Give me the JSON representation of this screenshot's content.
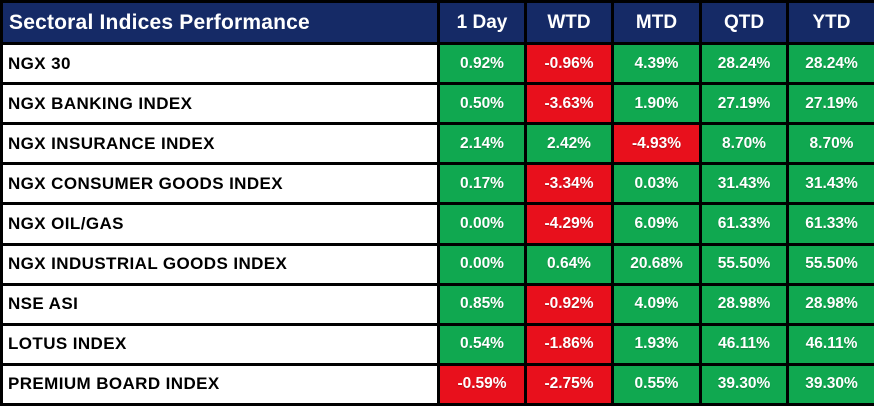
{
  "chart_data": {
    "type": "table",
    "title": "Sectoral Indices Performance",
    "columns": [
      "1 Day",
      "WTD",
      "MTD",
      "QTD",
      "YTD"
    ],
    "rows": [
      {
        "label": "NGX 30",
        "values": [
          "0.92%",
          "-0.96%",
          "4.39%",
          "28.24%",
          "28.24%"
        ]
      },
      {
        "label": "NGX BANKING INDEX",
        "values": [
          "0.50%",
          "-3.63%",
          "1.90%",
          "27.19%",
          "27.19%"
        ]
      },
      {
        "label": "NGX INSURANCE INDEX",
        "values": [
          "2.14%",
          "2.42%",
          "-4.93%",
          "8.70%",
          "8.70%"
        ]
      },
      {
        "label": "NGX CONSUMER GOODS INDEX",
        "values": [
          "0.17%",
          "-3.34%",
          "0.03%",
          "31.43%",
          "31.43%"
        ]
      },
      {
        "label": "NGX OIL/GAS",
        "values": [
          "0.00%",
          "-4.29%",
          "6.09%",
          "61.33%",
          "61.33%"
        ]
      },
      {
        "label": "NGX INDUSTRIAL GOODS INDEX",
        "values": [
          "0.00%",
          "0.64%",
          "20.68%",
          "55.50%",
          "55.50%"
        ]
      },
      {
        "label": "NSE ASI",
        "values": [
          "0.85%",
          "-0.92%",
          "4.09%",
          "28.98%",
          "28.98%"
        ]
      },
      {
        "label": "LOTUS INDEX",
        "values": [
          "0.54%",
          "-1.86%",
          "1.93%",
          "46.11%",
          "46.11%"
        ]
      },
      {
        "label": "PREMIUM BOARD INDEX",
        "values": [
          "-0.59%",
          "-2.75%",
          "0.55%",
          "39.30%",
          "39.30%"
        ]
      }
    ],
    "layout": {
      "legend": "none",
      "grid": "black cell borders",
      "color_rule": "negative values red background, non-negative values green background"
    }
  },
  "colors": {
    "header_bg": "#152a66",
    "positive_bg": "#10a850",
    "negative_bg": "#e8101c",
    "grid": "#000000",
    "label_bg": "#ffffff",
    "header_text": "#ffffff",
    "value_text": "#ffffff",
    "label_text": "#000000"
  }
}
